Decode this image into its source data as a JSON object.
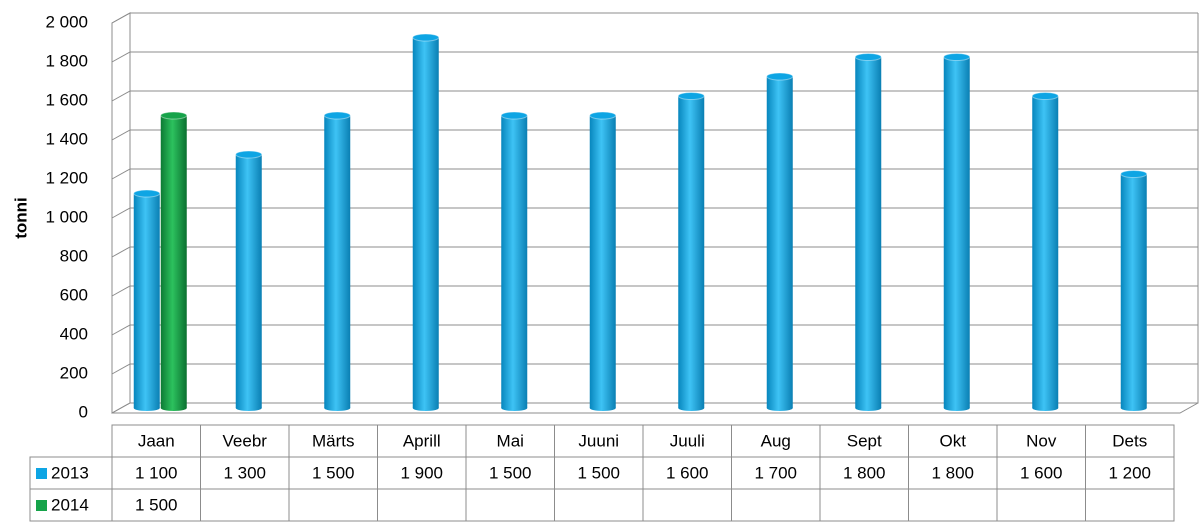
{
  "chart_data": {
    "type": "bar3d",
    "y_label": "tonni",
    "categories": [
      "Jaan",
      "Veebr",
      "Märts",
      "Aprill",
      "Mai",
      "Juuni",
      "Juuli",
      "Aug",
      "Sept",
      "Okt",
      "Nov",
      "Dets"
    ],
    "series": [
      {
        "name": "2013",
        "color": "#0ea5e4",
        "values": [
          1100,
          1300,
          1500,
          1900,
          1500,
          1500,
          1600,
          1700,
          1800,
          1800,
          1600,
          1200
        ],
        "value_labels": [
          "1 100",
          "1 300",
          "1 500",
          "1 900",
          "1 500",
          "1 500",
          "1 600",
          "1 700",
          "1 800",
          "1 800",
          "1 600",
          "1 200"
        ]
      },
      {
        "name": "2014",
        "color": "#16a34a",
        "values": [
          1500,
          null,
          null,
          null,
          null,
          null,
          null,
          null,
          null,
          null,
          null,
          null
        ],
        "value_labels": [
          "1 500",
          null,
          null,
          null,
          null,
          null,
          null,
          null,
          null,
          null,
          null,
          null
        ]
      }
    ],
    "ylim": [
      0,
      2000
    ],
    "yticks": [
      0,
      200,
      400,
      600,
      800,
      {
        "value": 1000,
        "label": "1 000"
      },
      {
        "value": 1200,
        "label": "1 200"
      },
      {
        "value": 1400,
        "label": "1 400"
      },
      {
        "value": 1600,
        "label": "1 600"
      },
      {
        "value": 1800,
        "label": "1 800"
      },
      {
        "value": 2000,
        "label": "2 000"
      }
    ],
    "grid": true,
    "data_table": true
  }
}
